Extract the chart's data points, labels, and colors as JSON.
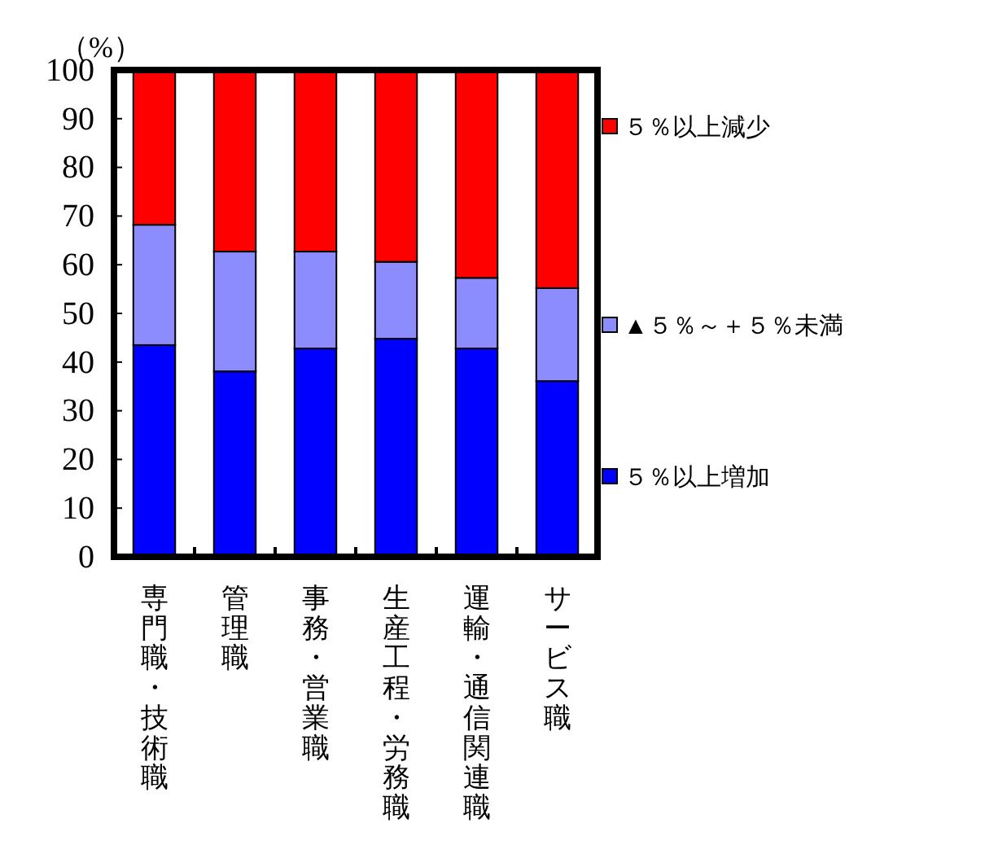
{
  "chart_data": {
    "type": "bar",
    "stacked": true,
    "ylabel": "（%）",
    "categories": [
      "専門職・技術職",
      "管理職",
      "事務・営業職",
      "生産工程・労務職",
      "運輸・通信関連職",
      "サービス職"
    ],
    "series": [
      {
        "name": "５％以上増加",
        "color": "#0000ff",
        "values": [
          43.5,
          38.1,
          42.8,
          44.8,
          42.8,
          36.1
        ]
      },
      {
        "name": "▲５％～＋５％未満",
        "color": "#8c8cff",
        "values": [
          24.7,
          24.6,
          19.9,
          15.8,
          14.5,
          19.1
        ]
      },
      {
        "name": "５％以上減少",
        "color": "#ff0000",
        "values": [
          31.8,
          37.3,
          37.3,
          39.4,
          42.7,
          44.8
        ]
      }
    ],
    "ylim": [
      0,
      100
    ],
    "yticks": [
      0,
      10,
      20,
      30,
      40,
      50,
      60,
      70,
      80,
      90,
      100
    ],
    "legend": "right",
    "grid": false
  }
}
